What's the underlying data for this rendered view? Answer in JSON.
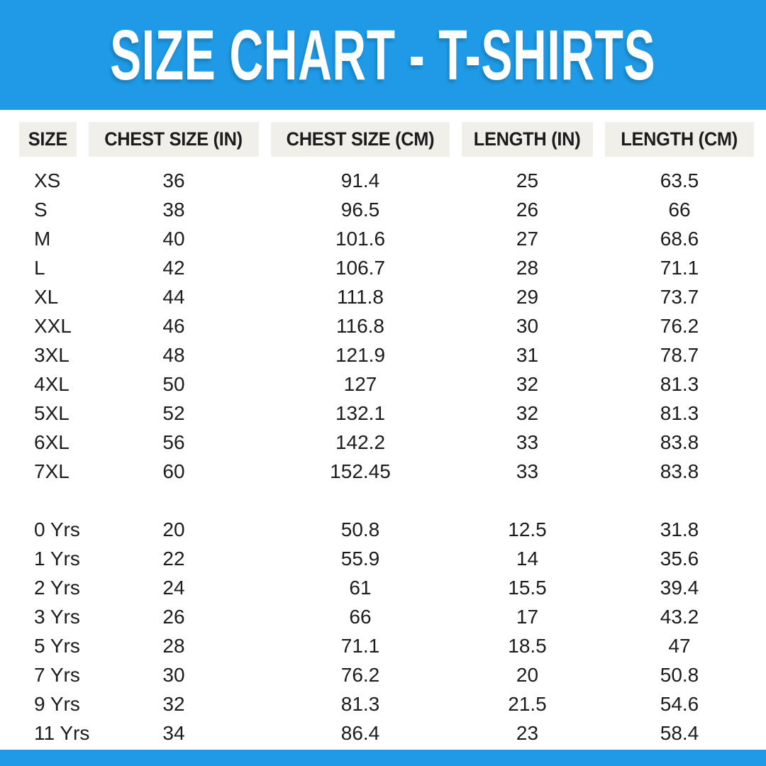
{
  "title": "SIZE CHART - T-SHIRTS",
  "chart_data": {
    "type": "table",
    "title": "SIZE CHART - T-SHIRTS",
    "columns": [
      "SIZE",
      "CHEST SIZE (IN)",
      "CHEST SIZE (CM)",
      "LENGTH (IN)",
      "LENGTH (CM)"
    ],
    "sections": [
      {
        "name": "adult-sizes",
        "rows": [
          [
            "XS",
            "36",
            "91.4",
            "25",
            "63.5"
          ],
          [
            "S",
            "38",
            "96.5",
            "26",
            "66"
          ],
          [
            "M",
            "40",
            "101.6",
            "27",
            "68.6"
          ],
          [
            "L",
            "42",
            "106.7",
            "28",
            "71.1"
          ],
          [
            "XL",
            "44",
            "111.8",
            "29",
            "73.7"
          ],
          [
            "XXL",
            "46",
            "116.8",
            "30",
            "76.2"
          ],
          [
            "3XL",
            "48",
            "121.9",
            "31",
            "78.7"
          ],
          [
            "4XL",
            "50",
            "127",
            "32",
            "81.3"
          ],
          [
            "5XL",
            "52",
            "132.1",
            "32",
            "81.3"
          ],
          [
            "6XL",
            "56",
            "142.2",
            "33",
            "83.8"
          ],
          [
            "7XL",
            "60",
            "152.45",
            "33",
            "83.8"
          ]
        ]
      },
      {
        "name": "kids-sizes",
        "rows": [
          [
            "0 Yrs",
            "20",
            "50.8",
            "12.5",
            "31.8"
          ],
          [
            "1 Yrs",
            "22",
            "55.9",
            "14",
            "35.6"
          ],
          [
            "2 Yrs",
            "24",
            "61",
            "15.5",
            "39.4"
          ],
          [
            "3 Yrs",
            "26",
            "66",
            "17",
            "43.2"
          ],
          [
            "5 Yrs",
            "28",
            "71.1",
            "18.5",
            "47"
          ],
          [
            "7 Yrs",
            "30",
            "76.2",
            "20",
            "50.8"
          ],
          [
            "9 Yrs",
            "32",
            "81.3",
            "21.5",
            "54.6"
          ],
          [
            "11 Yrs",
            "34",
            "86.4",
            "23",
            "58.4"
          ]
        ]
      }
    ]
  },
  "colors": {
    "banner_blue": "#1E9AE6",
    "header_cell_bg": "#F0EFE9",
    "text": "#1C1C1C",
    "title_text": "#FFFFFF"
  }
}
